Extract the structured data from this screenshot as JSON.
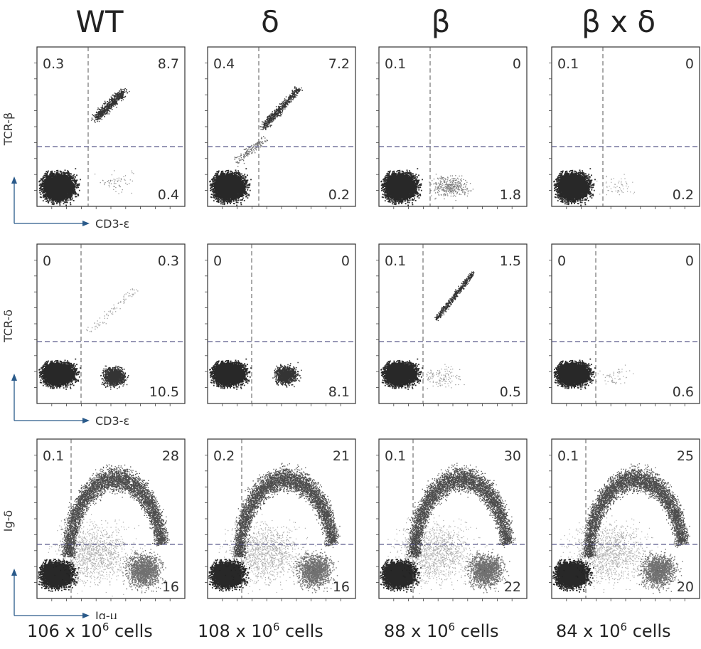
{
  "columns": [
    "WT",
    "δ",
    "β",
    "β x δ"
  ],
  "cell_counts": [
    {
      "base": "106 x 10",
      "exp": "6",
      "suffix": " cells"
    },
    {
      "base": "108 x 10",
      "exp": "6",
      "suffix": " cells"
    },
    {
      "base": "88 x 10",
      "exp": "6",
      "suffix": " cells"
    },
    {
      "base": "84 x 10",
      "exp": "6",
      "suffix": " cells"
    }
  ],
  "chart_data": {
    "type": "scatter",
    "rows": [
      {
        "ylabel": "TCR-β",
        "xlabel": "CD3-ε"
      },
      {
        "ylabel": "TCR-δ",
        "xlabel": "CD3-ε"
      },
      {
        "ylabel": "Ig-δ",
        "xlabel": "Ig-μ"
      }
    ],
    "quadrant_percentages": [
      [
        {
          "ul": "0.3",
          "ur": "8.7",
          "lr": "0.4"
        },
        {
          "ul": "0.4",
          "ur": "7.2",
          "lr": "0.2"
        },
        {
          "ul": "0.1",
          "ur": "0",
          "lr": "1.8"
        },
        {
          "ul": "0.1",
          "ur": "0",
          "lr": "0.2"
        }
      ],
      [
        {
          "ul": "0",
          "ur": "0.3",
          "lr": "10.5"
        },
        {
          "ul": "0",
          "ur": "0",
          "lr": "8.1"
        },
        {
          "ul": "0.1",
          "ur": "1.5",
          "lr": "0.5"
        },
        {
          "ul": "0",
          "ur": "0",
          "lr": "0.6"
        }
      ],
      [
        {
          "ul": "0.1",
          "ur": "28",
          "lr": "16"
        },
        {
          "ul": "0.2",
          "ur": "21",
          "lr": "16"
        },
        {
          "ul": "0.1",
          "ur": "30",
          "lr": "22"
        },
        {
          "ul": "0.1",
          "ur": "25",
          "lr": "20"
        }
      ]
    ]
  }
}
